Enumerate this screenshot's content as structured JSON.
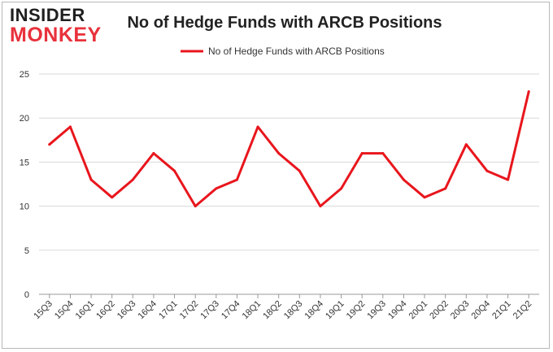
{
  "logo": {
    "line1": "INSIDER",
    "line2": "MONKEY"
  },
  "colors": {
    "series": "#e8161d",
    "grid": "#d9d9d9",
    "axis": "#999999"
  },
  "chart_data": {
    "type": "line",
    "title": "No of Hedge Funds with ARCB Positions",
    "legend": "top-center",
    "grid": true,
    "xlabel": "",
    "ylabel": "",
    "ylim": [
      0,
      25
    ],
    "yticks": [
      0,
      5,
      10,
      15,
      20,
      25
    ],
    "categories": [
      "15Q3",
      "15Q4",
      "16Q1",
      "16Q2",
      "16Q3",
      "16Q4",
      "17Q1",
      "17Q2",
      "17Q3",
      "17Q4",
      "18Q1",
      "18Q2",
      "18Q3",
      "18Q4",
      "19Q1",
      "19Q2",
      "19Q3",
      "19Q4",
      "20Q1",
      "20Q2",
      "20Q3",
      "20Q4",
      "21Q1",
      "21Q2"
    ],
    "series": [
      {
        "name": "No of Hedge Funds with ARCB Positions",
        "values": [
          17,
          19,
          13,
          11,
          13,
          16,
          14,
          10,
          12,
          13,
          19,
          16,
          14,
          10,
          12,
          16,
          16,
          13,
          11,
          12,
          17,
          14,
          13,
          23
        ]
      }
    ]
  }
}
